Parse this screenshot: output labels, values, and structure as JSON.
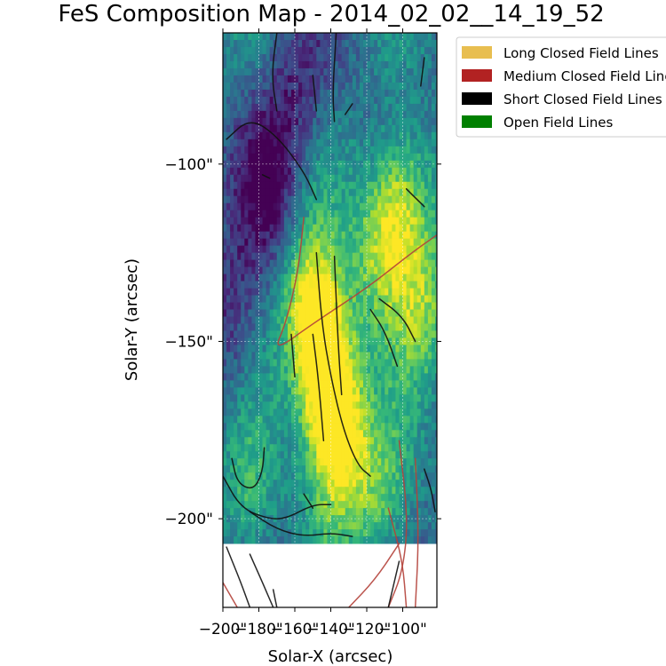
{
  "chart_data": {
    "type": "heatmap",
    "title": "FeS Composition Map - 2014_02_02__14_19_52",
    "xlabel": "Solar-X (arcsec)",
    "ylabel": "Solar-Y (arcsec)",
    "xlim": [
      -200,
      -81
    ],
    "ylim": [
      -225,
      -63
    ],
    "x_ticks": [
      -200,
      -180,
      -160,
      -140,
      -120,
      -100
    ],
    "x_tick_labels": [
      "−200\"",
      "−180\"",
      "−160\"",
      "−140\"",
      "−120\"",
      "−100\""
    ],
    "y_ticks": [
      -100,
      -150,
      -200
    ],
    "y_tick_labels": [
      "−100\"",
      "−150\"",
      "−200\""
    ],
    "grid": true,
    "colormap": "viridis",
    "data_extent_y": [
      -207,
      -63
    ],
    "hotspots": [
      {
        "x": -142,
        "y": -160,
        "weight": 1.0
      },
      {
        "x": -150,
        "y": -140,
        "weight": 0.85
      },
      {
        "x": -135,
        "y": -180,
        "weight": 0.8
      },
      {
        "x": -100,
        "y": -110,
        "weight": 0.7
      },
      {
        "x": -112,
        "y": -125,
        "weight": 0.55
      },
      {
        "x": -185,
        "y": -195,
        "weight": 0.45
      },
      {
        "x": -88,
        "y": -140,
        "weight": 0.5
      },
      {
        "x": -110,
        "y": -195,
        "weight": 0.5
      }
    ],
    "coldspots": [
      {
        "x": -175,
        "y": -105,
        "weight": 0.7
      },
      {
        "x": -195,
        "y": -145,
        "weight": 0.6
      },
      {
        "x": -160,
        "y": -80,
        "weight": 0.5
      }
    ],
    "legend": {
      "placement": "top-right",
      "entries": [
        {
          "label": "Long Closed Field Lines",
          "color": "#E8BE50"
        },
        {
          "label": "Medium Closed Field Lines",
          "color": "#B22222"
        },
        {
          "label": "Short Closed Field Lines",
          "color": "#000000"
        },
        {
          "label": "Open Field Lines",
          "color": "#008000"
        }
      ]
    },
    "field_lines": [
      {
        "category": "medium",
        "points": [
          [
            -155,
            -115
          ],
          [
            -158,
            -130
          ],
          [
            -165,
            -145
          ],
          [
            -172,
            -153
          ],
          [
            -150,
            -145
          ],
          [
            -120,
            -135
          ],
          [
            -95,
            -125
          ],
          [
            -81,
            -120
          ]
        ]
      },
      {
        "category": "medium",
        "points": [
          [
            -102,
            -178
          ],
          [
            -97,
            -200
          ],
          [
            -100,
            -215
          ],
          [
            -108,
            -225
          ]
        ]
      },
      {
        "category": "medium",
        "points": [
          [
            -93,
            -183
          ],
          [
            -91,
            -205
          ],
          [
            -93,
            -225
          ]
        ]
      },
      {
        "category": "medium",
        "points": [
          [
            -108,
            -197
          ],
          [
            -100,
            -212
          ],
          [
            -98,
            -225
          ]
        ]
      },
      {
        "category": "medium",
        "points": [
          [
            -130,
            -225
          ],
          [
            -115,
            -217
          ],
          [
            -102,
            -207
          ]
        ]
      },
      {
        "category": "medium",
        "points": [
          [
            -200,
            -218
          ],
          [
            -192,
            -225
          ]
        ]
      },
      {
        "category": "short",
        "points": [
          [
            -148,
            -125
          ],
          [
            -145,
            -145
          ],
          [
            -140,
            -160
          ],
          [
            -133,
            -175
          ],
          [
            -125,
            -185
          ],
          [
            -118,
            -188
          ]
        ]
      },
      {
        "category": "short",
        "points": [
          [
            -150,
            -148
          ],
          [
            -147,
            -160
          ],
          [
            -144,
            -178
          ]
        ]
      },
      {
        "category": "short",
        "points": [
          [
            -138,
            -126
          ],
          [
            -136,
            -150
          ],
          [
            -134,
            -165
          ]
        ]
      },
      {
        "category": "short",
        "points": [
          [
            -162,
            -148
          ],
          [
            -160,
            -160
          ]
        ]
      },
      {
        "category": "short",
        "points": [
          [
            -198,
            -93
          ],
          [
            -185,
            -87
          ],
          [
            -170,
            -92
          ],
          [
            -155,
            -102
          ],
          [
            -148,
            -110
          ]
        ]
      },
      {
        "category": "short",
        "points": [
          [
            -170,
            -63
          ],
          [
            -173,
            -75
          ],
          [
            -170,
            -85
          ]
        ]
      },
      {
        "category": "short",
        "points": [
          [
            -150,
            -75
          ],
          [
            -148,
            -85
          ]
        ]
      },
      {
        "category": "short",
        "points": [
          [
            -137,
            -63
          ],
          [
            -139,
            -80
          ],
          [
            -138,
            -88
          ]
        ]
      },
      {
        "category": "short",
        "points": [
          [
            -132,
            -86
          ],
          [
            -128,
            -83
          ]
        ]
      },
      {
        "category": "short",
        "points": [
          [
            -200,
            -188
          ],
          [
            -190,
            -197
          ],
          [
            -175,
            -200
          ],
          [
            -165,
            -200
          ],
          [
            -150,
            -196
          ],
          [
            -140,
            -196
          ]
        ]
      },
      {
        "category": "short",
        "points": [
          [
            -195,
            -183
          ],
          [
            -192,
            -190
          ],
          [
            -183,
            -192
          ],
          [
            -178,
            -187
          ],
          [
            -177,
            -180
          ]
        ]
      },
      {
        "category": "short",
        "points": [
          [
            -185,
            -198
          ],
          [
            -170,
            -203
          ],
          [
            -155,
            -205
          ],
          [
            -140,
            -204
          ],
          [
            -128,
            -205
          ]
        ]
      },
      {
        "category": "short",
        "points": [
          [
            -155,
            -193
          ],
          [
            -150,
            -197
          ]
        ]
      },
      {
        "category": "short",
        "points": [
          [
            -118,
            -141
          ],
          [
            -110,
            -147
          ],
          [
            -103,
            -157
          ]
        ]
      },
      {
        "category": "short",
        "points": [
          [
            -113,
            -138
          ],
          [
            -100,
            -143
          ],
          [
            -93,
            -150
          ]
        ]
      },
      {
        "category": "short",
        "points": [
          [
            -98,
            -107
          ],
          [
            -92,
            -110
          ],
          [
            -88,
            -112
          ]
        ]
      },
      {
        "category": "short",
        "points": [
          [
            -88,
            -70
          ],
          [
            -90,
            -78
          ]
        ]
      },
      {
        "category": "short",
        "points": [
          [
            -88,
            -186
          ],
          [
            -84,
            -192
          ],
          [
            -82,
            -198
          ]
        ]
      },
      {
        "category": "short",
        "points": [
          [
            -178,
            -103
          ],
          [
            -174,
            -104
          ]
        ]
      },
      {
        "category": "short",
        "points": [
          [
            -198,
            -208
          ],
          [
            -190,
            -218
          ],
          [
            -185,
            -225
          ]
        ]
      },
      {
        "category": "short",
        "points": [
          [
            -185,
            -210
          ],
          [
            -178,
            -218
          ],
          [
            -172,
            -225
          ]
        ]
      },
      {
        "category": "short",
        "points": [
          [
            -172,
            -220
          ],
          [
            -170,
            -225
          ]
        ]
      },
      {
        "category": "short",
        "points": [
          [
            -108,
            -225
          ],
          [
            -102,
            -212
          ]
        ]
      }
    ]
  }
}
